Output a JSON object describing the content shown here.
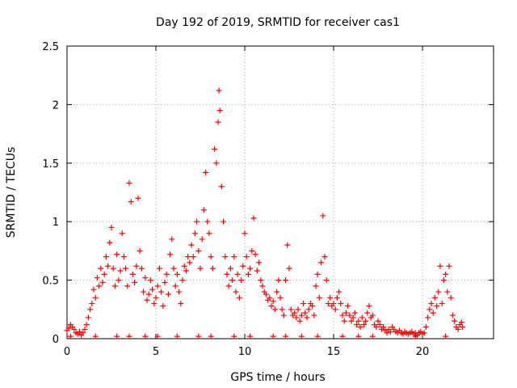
{
  "chart_data": {
    "type": "scatter",
    "title": "Day 192 of 2019, SRMTID for receiver cas1",
    "xlabel": "GPS time / hours",
    "ylabel": "SRMTID / TECUs",
    "xlim": [
      0,
      24
    ],
    "ylim": [
      0,
      2.5
    ],
    "grid": true,
    "marker": "+",
    "color": "#ff0000",
    "x_ticks": [
      {
        "value": 0,
        "label": "0"
      },
      {
        "value": 5,
        "label": "5"
      },
      {
        "value": 10,
        "label": "10"
      },
      {
        "value": 15,
        "label": "15"
      },
      {
        "value": 20,
        "label": "20"
      }
    ],
    "y_ticks": [
      {
        "value": 0,
        "label": "0"
      },
      {
        "value": 0.5,
        "label": "0.5"
      },
      {
        "value": 1,
        "label": "1"
      },
      {
        "value": 1.5,
        "label": "1.5"
      },
      {
        "value": 2,
        "label": "2"
      },
      {
        "value": 2.5,
        "label": "2.5"
      }
    ],
    "series": [
      {
        "name": "SRMTID",
        "points": [
          [
            0.0,
            0.07
          ],
          [
            0.1,
            0.09
          ],
          [
            0.2,
            0.12
          ],
          [
            0.3,
            0.1
          ],
          [
            0.4,
            0.08
          ],
          [
            0.5,
            0.05
          ],
          [
            0.6,
            0.04
          ],
          [
            0.7,
            0.06
          ],
          [
            0.8,
            0.03
          ],
          [
            0.9,
            0.05
          ],
          [
            1.0,
            0.08
          ],
          [
            1.1,
            0.12
          ],
          [
            1.2,
            0.18
          ],
          [
            1.3,
            0.25
          ],
          [
            1.4,
            0.3
          ],
          [
            1.5,
            0.42
          ],
          [
            1.6,
            0.35
          ],
          [
            1.7,
            0.52
          ],
          [
            1.8,
            0.45
          ],
          [
            1.9,
            0.6
          ],
          [
            2.0,
            0.48
          ],
          [
            2.1,
            0.55
          ],
          [
            2.2,
            0.7
          ],
          [
            2.3,
            0.62
          ],
          [
            2.4,
            0.82
          ],
          [
            2.5,
            0.95
          ],
          [
            2.6,
            0.6
          ],
          [
            2.7,
            0.45
          ],
          [
            2.8,
            0.72
          ],
          [
            2.9,
            0.5
          ],
          [
            3.0,
            0.58
          ],
          [
            3.1,
            0.9
          ],
          [
            3.2,
            0.7
          ],
          [
            3.3,
            0.6
          ],
          [
            3.4,
            0.45
          ],
          [
            3.5,
            1.33
          ],
          [
            3.6,
            1.17
          ],
          [
            3.7,
            0.55
          ],
          [
            3.8,
            0.48
          ],
          [
            3.9,
            0.62
          ],
          [
            4.0,
            1.2
          ],
          [
            4.1,
            0.75
          ],
          [
            4.2,
            0.6
          ],
          [
            4.3,
            0.4
          ],
          [
            4.4,
            0.52
          ],
          [
            4.5,
            0.33
          ],
          [
            4.6,
            0.38
          ],
          [
            4.7,
            0.5
          ],
          [
            4.8,
            0.42
          ],
          [
            4.9,
            0.3
          ],
          [
            5.0,
            0.35
          ],
          [
            5.1,
            0.45
          ],
          [
            5.2,
            0.6
          ],
          [
            5.3,
            0.4
          ],
          [
            5.4,
            0.28
          ],
          [
            5.5,
            0.48
          ],
          [
            5.6,
            0.55
          ],
          [
            5.7,
            0.38
          ],
          [
            5.8,
            0.72
          ],
          [
            5.9,
            0.85
          ],
          [
            6.0,
            0.6
          ],
          [
            6.1,
            0.45
          ],
          [
            6.2,
            0.55
          ],
          [
            6.3,
            0.4
          ],
          [
            6.4,
            0.3
          ],
          [
            6.5,
            0.5
          ],
          [
            6.6,
            0.62
          ],
          [
            6.7,
            0.58
          ],
          [
            6.8,
            0.7
          ],
          [
            6.9,
            0.65
          ],
          [
            7.0,
            0.8
          ],
          [
            7.1,
            0.7
          ],
          [
            7.2,
            0.9
          ],
          [
            7.3,
            1.0
          ],
          [
            7.4,
            0.75
          ],
          [
            7.5,
            0.6
          ],
          [
            7.6,
            0.85
          ],
          [
            7.7,
            1.1
          ],
          [
            7.8,
            1.42
          ],
          [
            7.9,
            1.0
          ],
          [
            8.0,
            0.9
          ],
          [
            8.1,
            0.7
          ],
          [
            8.2,
            0.6
          ],
          [
            8.3,
            1.62
          ],
          [
            8.4,
            1.5
          ],
          [
            8.5,
            1.85
          ],
          [
            8.55,
            2.12
          ],
          [
            8.6,
            1.95
          ],
          [
            8.7,
            1.3
          ],
          [
            8.8,
            1.0
          ],
          [
            8.9,
            0.7
          ],
          [
            9.0,
            0.55
          ],
          [
            9.1,
            0.45
          ],
          [
            9.2,
            0.6
          ],
          [
            9.3,
            0.5
          ],
          [
            9.4,
            0.7
          ],
          [
            9.5,
            0.4
          ],
          [
            9.6,
            0.55
          ],
          [
            9.7,
            0.35
          ],
          [
            9.8,
            0.5
          ],
          [
            9.9,
            0.62
          ],
          [
            10.0,
            0.9
          ],
          [
            10.1,
            0.7
          ],
          [
            10.2,
            0.55
          ],
          [
            10.3,
            0.6
          ],
          [
            10.4,
            0.75
          ],
          [
            10.5,
            1.03
          ],
          [
            10.6,
            0.72
          ],
          [
            10.7,
            0.58
          ],
          [
            10.8,
            0.65
          ],
          [
            10.9,
            0.5
          ],
          [
            11.0,
            0.45
          ],
          [
            11.1,
            0.4
          ],
          [
            11.2,
            0.38
          ],
          [
            11.3,
            0.33
          ],
          [
            11.4,
            0.35
          ],
          [
            11.5,
            0.28
          ],
          [
            11.6,
            0.32
          ],
          [
            11.7,
            0.25
          ],
          [
            11.8,
            0.4
          ],
          [
            11.9,
            0.5
          ],
          [
            12.0,
            0.35
          ],
          [
            12.1,
            0.25
          ],
          [
            12.2,
            0.2
          ],
          [
            12.3,
            0.5
          ],
          [
            12.4,
            0.8
          ],
          [
            12.5,
            0.6
          ],
          [
            12.6,
            0.25
          ],
          [
            12.7,
            0.2
          ],
          [
            12.8,
            0.22
          ],
          [
            12.9,
            0.18
          ],
          [
            13.0,
            0.25
          ],
          [
            13.1,
            0.15
          ],
          [
            13.2,
            0.2
          ],
          [
            13.3,
            0.3
          ],
          [
            13.4,
            0.22
          ],
          [
            13.5,
            0.18
          ],
          [
            13.6,
            0.25
          ],
          [
            13.7,
            0.3
          ],
          [
            13.8,
            0.28
          ],
          [
            13.9,
            0.2
          ],
          [
            14.0,
            0.45
          ],
          [
            14.1,
            0.55
          ],
          [
            14.2,
            0.35
          ],
          [
            14.3,
            0.65
          ],
          [
            14.4,
            1.05
          ],
          [
            14.5,
            0.7
          ],
          [
            14.6,
            0.5
          ],
          [
            14.7,
            0.3
          ],
          [
            14.8,
            0.35
          ],
          [
            14.9,
            0.28
          ],
          [
            15.0,
            0.3
          ],
          [
            15.1,
            0.25
          ],
          [
            15.2,
            0.35
          ],
          [
            15.3,
            0.4
          ],
          [
            15.4,
            0.3
          ],
          [
            15.5,
            0.2
          ],
          [
            15.6,
            0.15
          ],
          [
            15.7,
            0.22
          ],
          [
            15.8,
            0.28
          ],
          [
            15.9,
            0.2
          ],
          [
            16.0,
            0.15
          ],
          [
            16.1,
            0.18
          ],
          [
            16.2,
            0.22
          ],
          [
            16.3,
            0.12
          ],
          [
            16.4,
            0.15
          ],
          [
            16.5,
            0.1
          ],
          [
            16.6,
            0.18
          ],
          [
            16.7,
            0.12
          ],
          [
            16.8,
            0.15
          ],
          [
            16.9,
            0.22
          ],
          [
            17.0,
            0.28
          ],
          [
            17.1,
            0.18
          ],
          [
            17.2,
            0.2
          ],
          [
            17.3,
            0.12
          ],
          [
            17.4,
            0.1
          ],
          [
            17.5,
            0.15
          ],
          [
            17.6,
            0.12
          ],
          [
            17.7,
            0.08
          ],
          [
            17.8,
            0.1
          ],
          [
            17.9,
            0.07
          ],
          [
            18.0,
            0.05
          ],
          [
            18.1,
            0.08
          ],
          [
            18.2,
            0.06
          ],
          [
            18.3,
            0.1
          ],
          [
            18.4,
            0.08
          ],
          [
            18.5,
            0.06
          ],
          [
            18.6,
            0.05
          ],
          [
            18.7,
            0.07
          ],
          [
            18.8,
            0.05
          ],
          [
            18.9,
            0.04
          ],
          [
            19.0,
            0.06
          ],
          [
            19.1,
            0.05
          ],
          [
            19.2,
            0.04
          ],
          [
            19.3,
            0.05
          ],
          [
            19.4,
            0.06
          ],
          [
            19.5,
            0.04
          ],
          [
            19.6,
            0.05
          ],
          [
            19.7,
            0.03
          ],
          [
            19.8,
            0.05
          ],
          [
            19.9,
            0.06
          ],
          [
            20.0,
            0.04
          ],
          [
            20.1,
            0.05
          ],
          [
            20.2,
            0.1
          ],
          [
            20.3,
            0.18
          ],
          [
            20.4,
            0.25
          ],
          [
            20.5,
            0.3
          ],
          [
            20.6,
            0.22
          ],
          [
            20.7,
            0.35
          ],
          [
            20.8,
            0.28
          ],
          [
            20.9,
            0.4
          ],
          [
            21.0,
            0.62
          ],
          [
            21.1,
            0.3
          ],
          [
            21.2,
            0.5
          ],
          [
            21.3,
            0.55
          ],
          [
            21.4,
            0.4
          ],
          [
            21.5,
            0.62
          ],
          [
            21.6,
            0.35
          ],
          [
            21.7,
            0.2
          ],
          [
            21.8,
            0.15
          ],
          [
            21.9,
            0.1
          ],
          [
            22.0,
            0.08
          ],
          [
            22.1,
            0.12
          ],
          [
            22.2,
            0.14
          ],
          [
            22.25,
            0.1
          ],
          [
            0.2,
            0.02
          ],
          [
            1.6,
            0.02
          ],
          [
            2.8,
            0.02
          ],
          [
            3.5,
            0.02
          ],
          [
            4.4,
            0.02
          ],
          [
            5.1,
            0.02
          ],
          [
            6.2,
            0.02
          ],
          [
            7.4,
            0.02
          ],
          [
            8.1,
            0.02
          ],
          [
            9.4,
            0.02
          ],
          [
            10.3,
            0.02
          ],
          [
            11.6,
            0.02
          ],
          [
            12.3,
            0.02
          ],
          [
            13.2,
            0.02
          ],
          [
            14.1,
            0.02
          ],
          [
            15.5,
            0.02
          ],
          [
            16.4,
            0.02
          ],
          [
            17.2,
            0.02
          ],
          [
            19.6,
            0.02
          ],
          [
            21.3,
            0.02
          ]
        ]
      }
    ]
  }
}
